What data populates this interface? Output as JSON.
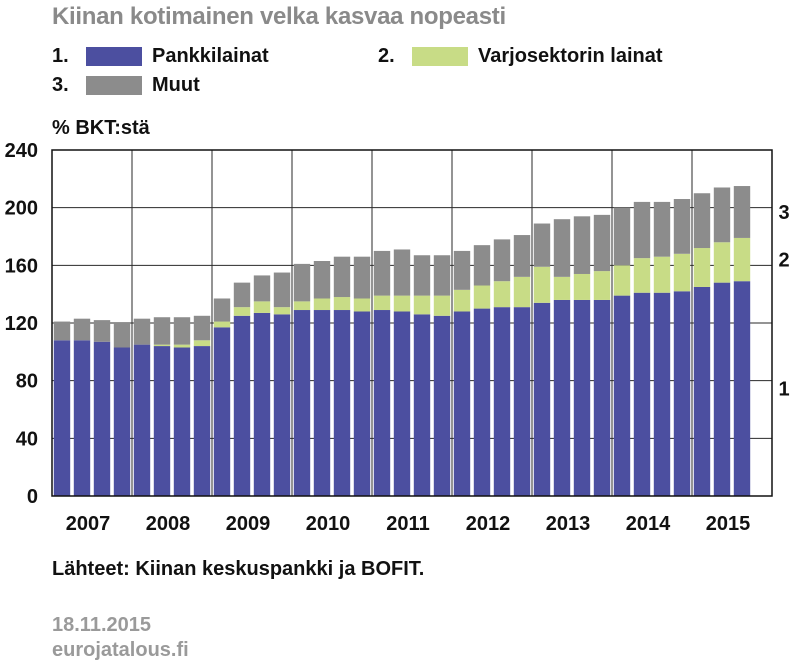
{
  "title": "Kiinan kotimainen velka kasvaa nopeasti",
  "legend": [
    {
      "num": "1.",
      "label": "Pankkilainat",
      "color": "#4c4fa0"
    },
    {
      "num": "2.",
      "label": "Varjosektorin lainat",
      "color": "#c8dc86"
    },
    {
      "num": "3.",
      "label": "Muut",
      "color": "#8c8c8c"
    }
  ],
  "unit_label": "% BKT:stä",
  "source": "Lähteet: Kiinan keskuspankki ja BOFIT.",
  "date": "18.11.2015",
  "site": "eurojatalous.fi",
  "chart_data": {
    "type": "bar",
    "stacked": true,
    "ylim": [
      0,
      240
    ],
    "yticks": [
      0,
      40,
      80,
      120,
      160,
      200,
      240
    ],
    "year_labels": [
      "2007",
      "2008",
      "2009",
      "2010",
      "2011",
      "2012",
      "2013",
      "2014",
      "2015"
    ],
    "quarters_per_year": 4,
    "series_end_labels": [
      "1",
      "2",
      "3"
    ],
    "series": [
      {
        "name": "Pankkilainat",
        "color": "#4c4fa0",
        "values": [
          108,
          108,
          107,
          103,
          105,
          104,
          103,
          104,
          117,
          125,
          127,
          126,
          129,
          129,
          129,
          128,
          129,
          128,
          126,
          125,
          128,
          130,
          131,
          131,
          134,
          136,
          136,
          136,
          139,
          141,
          141,
          142,
          145,
          148,
          149
        ]
      },
      {
        "name": "Varjosektorin lainat",
        "color": "#c8dc86",
        "values": [
          0,
          0,
          0,
          0,
          0,
          1,
          2,
          4,
          4,
          6,
          8,
          5,
          6,
          8,
          9,
          9,
          10,
          11,
          13,
          14,
          15,
          16,
          18,
          21,
          25,
          16,
          18,
          20,
          21,
          24,
          25,
          26,
          27,
          28,
          30
        ]
      },
      {
        "name": "Muut",
        "color": "#8c8c8c",
        "values": [
          13,
          15,
          15,
          17,
          18,
          19,
          19,
          17,
          16,
          17,
          18,
          24,
          26,
          26,
          28,
          29,
          31,
          32,
          28,
          28,
          27,
          28,
          29,
          29,
          30,
          40,
          40,
          39,
          40,
          39,
          38,
          38,
          38,
          38,
          36
        ]
      }
    ]
  }
}
